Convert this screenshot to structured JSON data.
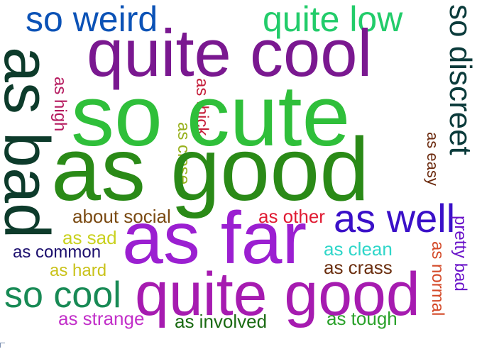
{
  "words": [
    {
      "text": "so weird",
      "color": "#0b52b6",
      "rotate": 0
    },
    {
      "text": "quite low",
      "color": "#22cc6a",
      "rotate": 0
    },
    {
      "text": "quite cool",
      "color": "#7a1890",
      "rotate": 0
    },
    {
      "text": "so discreet",
      "color": "#0b3b3b",
      "rotate": 90
    },
    {
      "text": "as bad",
      "color": "#0d3b2b",
      "rotate": 90
    },
    {
      "text": "as high",
      "color": "#b5195e",
      "rotate": 90
    },
    {
      "text": "as thick",
      "color": "#c51e3a",
      "rotate": 90
    },
    {
      "text": "as close",
      "color": "#98b11e",
      "rotate": 90
    },
    {
      "text": "so cute",
      "color": "#2fbf3a",
      "rotate": 0
    },
    {
      "text": "as easy",
      "color": "#6b2a0e",
      "rotate": 90
    },
    {
      "text": "as good",
      "color": "#2a8a17",
      "rotate": 0
    },
    {
      "text": "about social",
      "color": "#7a4a12",
      "rotate": 0
    },
    {
      "text": "as other",
      "color": "#e01a32",
      "rotate": 0
    },
    {
      "text": "as well",
      "color": "#3a10c8",
      "rotate": 0
    },
    {
      "text": "as sad",
      "color": "#c9d11e",
      "rotate": 0
    },
    {
      "text": "as far",
      "color": "#9b1fd1",
      "rotate": 0
    },
    {
      "text": "pretty bad",
      "color": "#6a14c9",
      "rotate": 90
    },
    {
      "text": "as common",
      "color": "#1c0f6e",
      "rotate": 0
    },
    {
      "text": "as clean",
      "color": "#2fd6c9",
      "rotate": 0
    },
    {
      "text": "as normal",
      "color": "#d44b2a",
      "rotate": 90
    },
    {
      "text": "as crass",
      "color": "#6b2f10",
      "rotate": 0
    },
    {
      "text": "as hard",
      "color": "#c9c21a",
      "rotate": 0
    },
    {
      "text": "so cool",
      "color": "#188a55",
      "rotate": 0
    },
    {
      "text": "quite good",
      "color": "#a61bb0",
      "rotate": 0
    },
    {
      "text": "as strange",
      "color": "#c230c9",
      "rotate": 0
    },
    {
      "text": "as involved",
      "color": "#1a6a12",
      "rotate": 0
    },
    {
      "text": "as tough",
      "color": "#2aa12a",
      "rotate": 0
    }
  ]
}
